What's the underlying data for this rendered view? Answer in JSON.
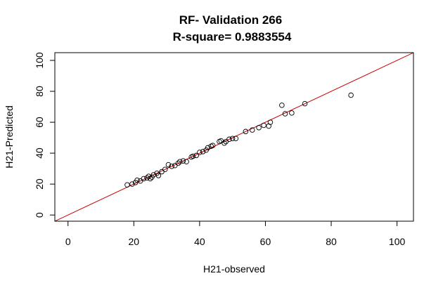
{
  "chart_data": {
    "type": "scatter",
    "title": "RF- Validation 266",
    "subtitle": "R-square= 0.9883554",
    "xlabel": "H21-observed",
    "ylabel": "H21-Predicted",
    "xlim": [
      -4,
      105
    ],
    "ylim": [
      -4,
      105
    ],
    "x_ticks": [
      0,
      20,
      40,
      60,
      80,
      100
    ],
    "y_ticks": [
      0,
      20,
      40,
      60,
      80,
      100
    ],
    "reference_line": {
      "intercept": 0,
      "slope": 1,
      "color": "#cc0000"
    },
    "point_color": "#000000",
    "points": [
      [
        18,
        19.5
      ],
      [
        19.5,
        20
      ],
      [
        20.5,
        21
      ],
      [
        21,
        22.5
      ],
      [
        22,
        22
      ],
      [
        23,
        23.5
      ],
      [
        24,
        24
      ],
      [
        24.5,
        25
      ],
      [
        25,
        23.5
      ],
      [
        25.5,
        24.5
      ],
      [
        26,
        26
      ],
      [
        27,
        27
      ],
      [
        27.5,
        25.5
      ],
      [
        28.5,
        28
      ],
      [
        29.5,
        29.5
      ],
      [
        30.5,
        32.5
      ],
      [
        31.5,
        31.5
      ],
      [
        32.5,
        32
      ],
      [
        33.5,
        33.5
      ],
      [
        34,
        34.5
      ],
      [
        35,
        35
      ],
      [
        36,
        34.5
      ],
      [
        37.5,
        37.5
      ],
      [
        38,
        38
      ],
      [
        39,
        38.5
      ],
      [
        40,
        40.5
      ],
      [
        41,
        41
      ],
      [
        42,
        42
      ],
      [
        42.5,
        43.5
      ],
      [
        43.5,
        44.5
      ],
      [
        44,
        45
      ],
      [
        46,
        47.5
      ],
      [
        46.5,
        48
      ],
      [
        47.5,
        46.5
      ],
      [
        48,
        47.5
      ],
      [
        49,
        49
      ],
      [
        50,
        49.5
      ],
      [
        51,
        49.5
      ],
      [
        54,
        54
      ],
      [
        56,
        55
      ],
      [
        58,
        56.5
      ],
      [
        59.5,
        58
      ],
      [
        61,
        57.5
      ],
      [
        61.5,
        60
      ],
      [
        65,
        71
      ],
      [
        66,
        65.5
      ],
      [
        68,
        66
      ],
      [
        72,
        72
      ],
      [
        86,
        77.5
      ]
    ]
  }
}
